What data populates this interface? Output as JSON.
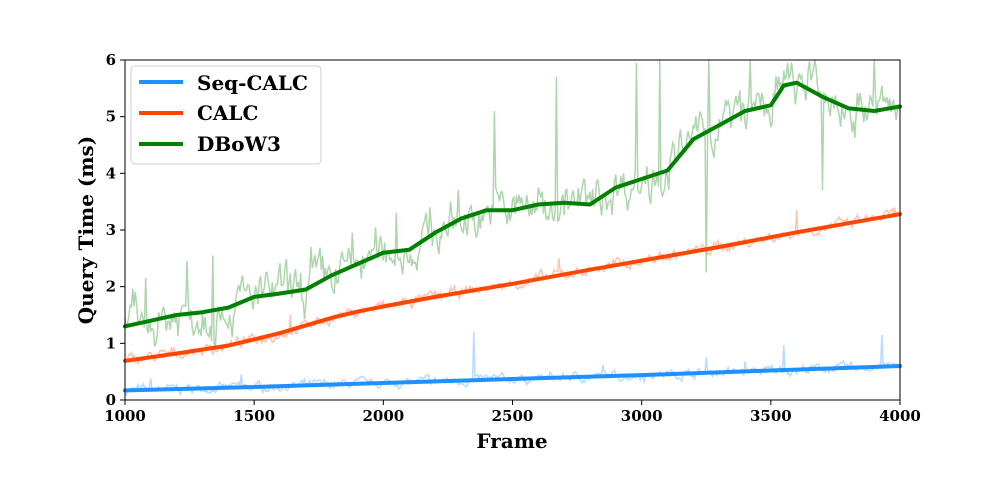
{
  "chart_data": {
    "type": "line",
    "title": "",
    "xlabel": "Frame",
    "ylabel": "Query Time (ms)",
    "xlim": [
      1000,
      4000
    ],
    "ylim": [
      0,
      6
    ],
    "xticks": [
      1000,
      1500,
      2000,
      2500,
      3000,
      3500,
      4000
    ],
    "yticks": [
      0,
      1,
      2,
      3,
      4,
      5,
      6
    ],
    "grid": false,
    "legend_position": "top-left",
    "series": [
      {
        "name": "Seq-CALC",
        "color": "#1e90ff",
        "raw_noise": 0.05,
        "spikes": [
          [
            1100,
            0.38
          ],
          [
            1450,
            0.45
          ],
          [
            2350,
            1.2
          ],
          [
            2850,
            0.62
          ],
          [
            3250,
            0.75
          ],
          [
            3400,
            0.68
          ],
          [
            3550,
            0.97
          ],
          [
            3930,
            1.15
          ]
        ],
        "smoothed": [
          [
            1000,
            0.17
          ],
          [
            1500,
            0.23
          ],
          [
            2000,
            0.3
          ],
          [
            2500,
            0.37
          ],
          [
            3000,
            0.44
          ],
          [
            3500,
            0.52
          ],
          [
            4000,
            0.6
          ]
        ]
      },
      {
        "name": "CALC",
        "color": "#ff4500",
        "raw_noise": 0.06,
        "spikes": [
          [
            1640,
            1.5
          ],
          [
            2680,
            2.5
          ],
          [
            3600,
            3.35
          ]
        ],
        "smoothed": [
          [
            1000,
            0.69
          ],
          [
            1200,
            0.82
          ],
          [
            1400,
            0.96
          ],
          [
            1600,
            1.18
          ],
          [
            1800,
            1.45
          ],
          [
            1900,
            1.56
          ],
          [
            2000,
            1.65
          ],
          [
            2200,
            1.82
          ],
          [
            2500,
            2.05
          ],
          [
            2800,
            2.3
          ],
          [
            3000,
            2.46
          ],
          [
            3300,
            2.7
          ],
          [
            3600,
            2.96
          ],
          [
            4000,
            3.28
          ]
        ]
      },
      {
        "name": "DBoW3",
        "color": "#008000",
        "raw_noise": 0.25,
        "spikes": [
          [
            1080,
            2.15
          ],
          [
            1240,
            2.45
          ],
          [
            1340,
            2.55
          ],
          [
            1720,
            2.7
          ],
          [
            1880,
            2.95
          ],
          [
            2050,
            3.3
          ],
          [
            2180,
            3.4
          ],
          [
            2290,
            3.7
          ],
          [
            2430,
            5.1
          ],
          [
            2670,
            5.7
          ],
          [
            2980,
            5.95
          ],
          [
            3070,
            6.0
          ],
          [
            3260,
            6.0
          ],
          [
            3420,
            6.0
          ],
          [
            3670,
            6.0
          ],
          [
            3900,
            6.0
          ],
          [
            3250,
            2.25
          ],
          [
            3700,
            3.7
          ]
        ],
        "smoothed": [
          [
            1000,
            1.3
          ],
          [
            1100,
            1.4
          ],
          [
            1150,
            1.45
          ],
          [
            1200,
            1.5
          ],
          [
            1300,
            1.55
          ],
          [
            1400,
            1.63
          ],
          [
            1500,
            1.82
          ],
          [
            1600,
            1.88
          ],
          [
            1700,
            1.95
          ],
          [
            1800,
            2.2
          ],
          [
            1900,
            2.4
          ],
          [
            2000,
            2.6
          ],
          [
            2100,
            2.65
          ],
          [
            2200,
            2.95
          ],
          [
            2300,
            3.2
          ],
          [
            2400,
            3.35
          ],
          [
            2500,
            3.35
          ],
          [
            2600,
            3.45
          ],
          [
            2700,
            3.48
          ],
          [
            2800,
            3.45
          ],
          [
            2900,
            3.75
          ],
          [
            3000,
            3.9
          ],
          [
            3100,
            4.05
          ],
          [
            3200,
            4.6
          ],
          [
            3300,
            4.85
          ],
          [
            3400,
            5.1
          ],
          [
            3500,
            5.2
          ],
          [
            3550,
            5.55
          ],
          [
            3600,
            5.6
          ],
          [
            3700,
            5.35
          ],
          [
            3800,
            5.15
          ],
          [
            3900,
            5.1
          ],
          [
            4000,
            5.18
          ]
        ]
      }
    ]
  }
}
